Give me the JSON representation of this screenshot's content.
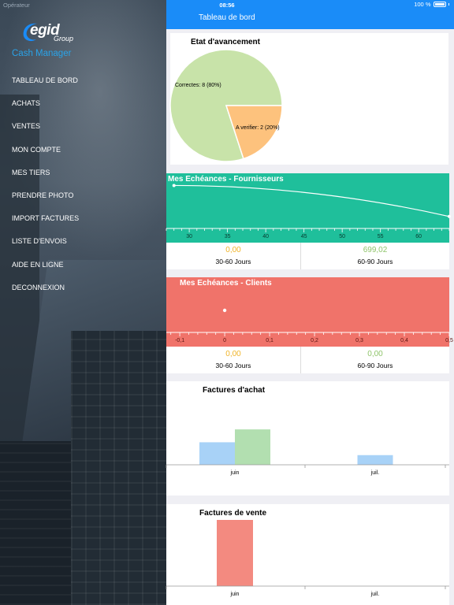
{
  "status_bar": {
    "carrier": "Opérateur",
    "time": "08:56",
    "battery": "100 %"
  },
  "sidebar": {
    "logo_text": "egid",
    "logo_group": "Group",
    "app_title": "Cash Manager",
    "items": [
      {
        "label": "TABLEAU DE BORD"
      },
      {
        "label": "ACHATS"
      },
      {
        "label": "VENTES"
      },
      {
        "label": "MON COMPTE"
      },
      {
        "label": "MES TIERS"
      },
      {
        "label": "PRENDRE PHOTO"
      },
      {
        "label": "IMPORT FACTURES"
      },
      {
        "label": "LISTE D'ENVOIS"
      },
      {
        "label": "AIDE EN LIGNE"
      },
      {
        "label": "DECONNEXION"
      }
    ]
  },
  "navbar": {
    "title": "Tableau de bord"
  },
  "cards": {
    "avancement": {
      "title": "Etat d'avancement",
      "slice_labels": [
        "Correctes: 8 (80%)",
        "A verifier: 2 (20%)"
      ]
    },
    "fournisseurs": {
      "title": "Mes Echéances - Fournisseurs",
      "metrics": [
        {
          "value": "0,00",
          "label": "30-60 Jours"
        },
        {
          "value": "699,02",
          "label": "60-90 Jours"
        }
      ]
    },
    "clients": {
      "title": "Mes Echéances - Clients",
      "metrics": [
        {
          "value": "0,00",
          "label": "30-60 Jours"
        },
        {
          "value": "0,00",
          "label": "60-90 Jours"
        }
      ]
    },
    "achat": {
      "title": "Factures d'achat"
    },
    "vente": {
      "title": "Factures de vente"
    }
  },
  "colors": {
    "accent": "#1a8cf8",
    "teal": "#1fbf9b",
    "salmon": "#f0736a",
    "pie_green": "#c8e3a9",
    "pie_orange": "#fdc27d",
    "bar_blue": "#a8d2f7",
    "bar_green": "#b2dfb0",
    "bar_red": "#f38a80",
    "value_orange": "#f0b429",
    "value_green": "#8fc46a"
  },
  "chart_data": [
    {
      "type": "pie",
      "title": "Etat d'avancement",
      "labels": [
        "Correctes",
        "A verifier"
      ],
      "values": [
        8,
        2
      ],
      "slice_labels": [
        "Correctes: 8 (80%)",
        "A verifier: 2 (20%)"
      ]
    },
    {
      "type": "line",
      "title": "Mes Echéances - Fournisseurs",
      "x_ticks": [
        "30",
        "35",
        "40",
        "45",
        "50",
        "55",
        "60"
      ],
      "xlim": [
        27,
        64
      ],
      "ylim": [
        0,
        1
      ],
      "series": [
        {
          "x": [
            28,
            64
          ],
          "y": [
            0.97,
            0.15
          ]
        }
      ]
    },
    {
      "type": "scatter",
      "title": "Mes Echéances - Clients",
      "x_ticks": [
        "-0,1",
        "0",
        "0,1",
        "0,2",
        "0,3",
        "0,4",
        "0,5"
      ],
      "xlim": [
        -0.13,
        0.5
      ],
      "series": [
        {
          "x": [
            0
          ],
          "y": [
            0
          ]
        }
      ]
    },
    {
      "type": "bar",
      "title": "Factures d'achat",
      "categories": [
        "juin",
        "juil."
      ],
      "ylim": [
        0,
        6
      ],
      "series": [
        {
          "values": [
            3.5,
            1.5
          ]
        },
        {
          "values": [
            5.5,
            0
          ]
        }
      ]
    },
    {
      "type": "bar",
      "title": "Factures de vente",
      "categories": [
        "juin",
        "juil."
      ],
      "ylim": [
        0,
        1
      ],
      "series": [
        {
          "values": [
            1,
            0
          ]
        }
      ]
    }
  ]
}
